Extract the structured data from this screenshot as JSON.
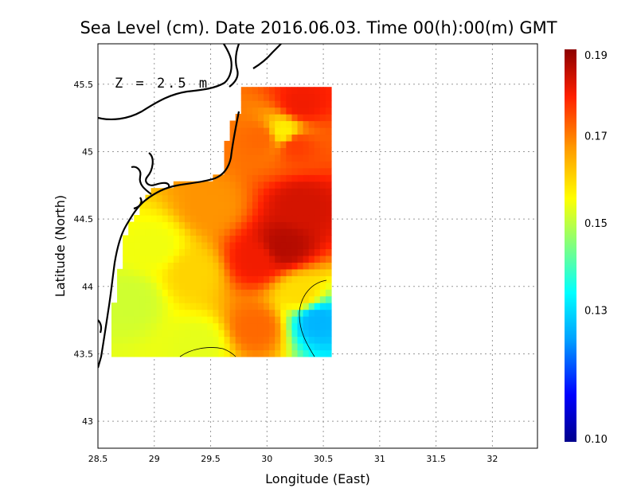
{
  "chart_data": {
    "type": "heatmap",
    "title": "Sea Level (cm). Date 2016.06.03. Time 00(h):00(m) GMT",
    "xlabel": "Longitude (East)",
    "ylabel": "Latitude (North)",
    "annotation": "Z = 2.5 m",
    "xlim": [
      28.5,
      32.4
    ],
    "ylim": [
      42.8,
      45.8
    ],
    "x_ticks": [
      "28.5",
      "29",
      "29.5",
      "30",
      "30.5",
      "31",
      "31.5",
      "32"
    ],
    "y_ticks": [
      "43",
      "43.5",
      "44",
      "44.5",
      "45",
      "45.5"
    ],
    "grid": true,
    "colorbar": {
      "range": [
        0.1,
        0.19
      ],
      "tick_labels": [
        "0.10",
        "0.13",
        "0.15",
        "0.17",
        "0.19"
      ],
      "colors": [
        "#00008c",
        "#0000ff",
        "#00a0ff",
        "#00ffff",
        "#80ff80",
        "#ffff00",
        "#ff9900",
        "#ff2000",
        "#8c0000"
      ]
    },
    "field_domain": {
      "lon": [
        28.62,
        30.55
      ],
      "lat": [
        43.48,
        45.5
      ]
    },
    "field_samples": [
      {
        "lon": 29.0,
        "lat": 44.3,
        "value": 0.155
      },
      {
        "lon": 28.8,
        "lat": 43.9,
        "value": 0.152
      },
      {
        "lon": 29.35,
        "lat": 44.1,
        "value": 0.161
      },
      {
        "lon": 29.9,
        "lat": 44.2,
        "value": 0.18
      },
      {
        "lon": 30.15,
        "lat": 44.3,
        "value": 0.186
      },
      {
        "lon": 30.3,
        "lat": 44.6,
        "value": 0.183
      },
      {
        "lon": 30.25,
        "lat": 45.05,
        "value": 0.176
      },
      {
        "lon": 30.3,
        "lat": 45.35,
        "value": 0.18
      },
      {
        "lon": 29.95,
        "lat": 45.1,
        "value": 0.172
      },
      {
        "lon": 30.15,
        "lat": 45.15,
        "value": 0.158
      },
      {
        "lon": 29.5,
        "lat": 44.6,
        "value": 0.168
      },
      {
        "lon": 29.4,
        "lat": 43.58,
        "value": 0.154
      },
      {
        "lon": 29.9,
        "lat": 43.7,
        "value": 0.172
      },
      {
        "lon": 30.45,
        "lat": 43.75,
        "value": 0.125
      },
      {
        "lon": 30.3,
        "lat": 43.95,
        "value": 0.16
      }
    ]
  }
}
